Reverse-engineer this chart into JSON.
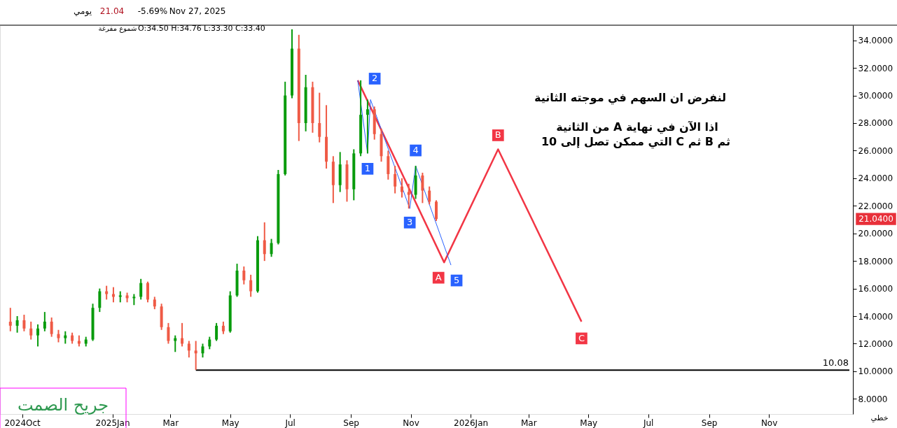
{
  "chart_data": {
    "type": "candlestick",
    "x": [
      "2024-09-19",
      "2024-09-26",
      "2024-10-03",
      "2024-10-10",
      "2024-10-17",
      "2024-10-24",
      "2024-10-31",
      "2024-11-07",
      "2024-11-14",
      "2024-11-21",
      "2024-11-28",
      "2024-12-05",
      "2024-12-12",
      "2024-12-19",
      "2024-12-26",
      "2025-01-02",
      "2025-01-09",
      "2025-01-16",
      "2025-01-23",
      "2025-01-30",
      "2025-02-06",
      "2025-02-13",
      "2025-02-20",
      "2025-02-27",
      "2025-03-06",
      "2025-03-13",
      "2025-03-20",
      "2025-03-27",
      "2025-04-03",
      "2025-04-10",
      "2025-04-17",
      "2025-04-24",
      "2025-05-01",
      "2025-05-08",
      "2025-05-15",
      "2025-05-22",
      "2025-05-29",
      "2025-06-05",
      "2025-06-12",
      "2025-06-19",
      "2025-06-26",
      "2025-07-03",
      "2025-07-10",
      "2025-07-17",
      "2025-07-24",
      "2025-07-31",
      "2025-08-07",
      "2025-08-14",
      "2025-08-21",
      "2025-08-28",
      "2025-09-04",
      "2025-09-11",
      "2025-09-18",
      "2025-09-25",
      "2025-10-02",
      "2025-10-09",
      "2025-10-16",
      "2025-10-23",
      "2025-10-30",
      "2025-11-06",
      "2025-11-13",
      "2025-11-20",
      "2025-11-27"
    ],
    "ohlc": [
      [
        13.6,
        14.6,
        12.9,
        13.3
      ],
      [
        13.3,
        14.0,
        12.8,
        13.7
      ],
      [
        13.7,
        14.1,
        12.9,
        13.1
      ],
      [
        13.1,
        13.6,
        12.3,
        12.6
      ],
      [
        12.6,
        13.4,
        11.8,
        13.1
      ],
      [
        13.1,
        14.3,
        12.9,
        13.6
      ],
      [
        13.6,
        13.9,
        12.5,
        12.7
      ],
      [
        12.7,
        13.0,
        12.1,
        12.4
      ],
      [
        12.4,
        12.9,
        12.0,
        12.6
      ],
      [
        12.6,
        12.8,
        12.0,
        12.2
      ],
      [
        12.2,
        12.6,
        11.8,
        12.0
      ],
      [
        12.0,
        12.5,
        11.8,
        12.3
      ],
      [
        12.3,
        14.9,
        12.2,
        14.6
      ],
      [
        14.6,
        16.0,
        14.3,
        15.8
      ],
      [
        15.8,
        16.2,
        15.2,
        15.6
      ],
      [
        15.6,
        16.1,
        15.0,
        15.4
      ],
      [
        15.4,
        15.8,
        15.0,
        15.5
      ],
      [
        15.5,
        15.7,
        15.0,
        15.3
      ],
      [
        15.3,
        15.6,
        14.8,
        15.4
      ],
      [
        15.4,
        16.7,
        15.2,
        16.4
      ],
      [
        16.4,
        16.5,
        15.0,
        15.2
      ],
      [
        15.2,
        15.4,
        14.5,
        14.7
      ],
      [
        14.7,
        14.9,
        13.0,
        13.2
      ],
      [
        13.2,
        13.5,
        12.0,
        12.2
      ],
      [
        12.2,
        12.6,
        11.4,
        12.4
      ],
      [
        12.4,
        13.5,
        11.8,
        12.0
      ],
      [
        12.0,
        12.2,
        11.0,
        11.5
      ],
      [
        11.5,
        12.2,
        10.1,
        11.3
      ],
      [
        11.3,
        12.0,
        11.0,
        11.8
      ],
      [
        11.8,
        12.5,
        11.6,
        12.3
      ],
      [
        12.3,
        13.5,
        12.2,
        13.3
      ],
      [
        13.3,
        13.6,
        12.7,
        12.9
      ],
      [
        12.9,
        15.8,
        12.8,
        15.5
      ],
      [
        15.5,
        17.8,
        15.4,
        17.3
      ],
      [
        17.3,
        17.6,
        16.3,
        16.6
      ],
      [
        16.6,
        17.0,
        15.4,
        15.8
      ],
      [
        15.8,
        19.8,
        15.7,
        19.5
      ],
      [
        19.5,
        20.8,
        18.0,
        18.5
      ],
      [
        18.5,
        19.6,
        18.3,
        19.3
      ],
      [
        19.3,
        24.6,
        19.2,
        24.3
      ],
      [
        24.3,
        31.0,
        24.2,
        30.0
      ],
      [
        30.0,
        34.8,
        29.8,
        33.4
      ],
      [
        33.4,
        34.4,
        26.7,
        28.0
      ],
      [
        28.0,
        31.5,
        27.4,
        30.6
      ],
      [
        30.6,
        31.0,
        27.3,
        28.0
      ],
      [
        28.0,
        30.2,
        26.6,
        27.0
      ],
      [
        27.0,
        29.3,
        24.7,
        25.2
      ],
      [
        25.2,
        25.6,
        22.2,
        23.5
      ],
      [
        23.5,
        25.9,
        23.0,
        25.0
      ],
      [
        25.0,
        25.3,
        22.3,
        23.2
      ],
      [
        23.2,
        26.1,
        22.4,
        25.8
      ],
      [
        25.8,
        31.1,
        25.6,
        28.6
      ],
      [
        28.6,
        29.7,
        25.8,
        29.0
      ],
      [
        29.0,
        29.2,
        26.8,
        27.2
      ],
      [
        27.2,
        27.6,
        25.2,
        25.6
      ],
      [
        25.6,
        26.0,
        23.9,
        24.3
      ],
      [
        24.3,
        24.9,
        22.9,
        23.4
      ],
      [
        23.4,
        24.0,
        22.6,
        23.0
      ],
      [
        23.0,
        23.6,
        21.8,
        22.8
      ],
      [
        22.8,
        24.9,
        22.5,
        24.2
      ],
      [
        24.2,
        24.4,
        22.2,
        23.1
      ],
      [
        23.1,
        23.4,
        22.1,
        22.3
      ],
      [
        22.3,
        22.4,
        20.9,
        21.04
      ]
    ],
    "colors": [
      "#ef5a45",
      "#089b0c",
      "#ef5a45",
      "#ef5a45",
      "#089b0c",
      "#089b0c",
      "#ef5a45",
      "#ef5a45",
      "#089b0c",
      "#ef5a45",
      "#ef5a45",
      "#089b0c",
      "#089b0c",
      "#089b0c",
      "#ef5a45",
      "#ef5a45",
      "#089b0c",
      "#ef5a45",
      "#089b0c",
      "#089b0c",
      "#ef5a45",
      "#ef5a45",
      "#ef5a45",
      "#ef5a45",
      "#089b0c",
      "#ef5a45",
      "#ef5a45",
      "#ef5a45",
      "#089b0c",
      "#089b0c",
      "#089b0c",
      "#ef5a45",
      "#089b0c",
      "#089b0c",
      "#ef5a45",
      "#ef5a45",
      "#089b0c",
      "#ef5a45",
      "#089b0c",
      "#089b0c",
      "#089b0c",
      "#089b0c",
      "#ef5a45",
      "#089b0c",
      "#ef5a45",
      "#ef5a45",
      "#ef5a45",
      "#ef5a45",
      "#089b0c",
      "#ef5a45",
      "#089b0c",
      "#089b0c",
      "#089b0c",
      "#ef5a45",
      "#ef5a45",
      "#ef5a45",
      "#ef5a45",
      "#ef5a45",
      "#ef5a45",
      "#089b0c",
      "#ef5a45",
      "#ef5a45",
      "#ef5a45"
    ],
    "series": [
      {
        "type": "line",
        "color": "#2962ff",
        "x": [
          "2025-09-08",
          "2025-09-18",
          "2025-09-21",
          "2025-10-31",
          "2025-11-06",
          "2025-12-12"
        ],
        "values": [
          31.1,
          25.8,
          29.7,
          21.8,
          24.9,
          17.7
        ]
      },
      {
        "type": "line",
        "color": "#f23645",
        "x": [
          "2025-09-08",
          "2025-12-05",
          "2026-01-29",
          "2026-04-24"
        ],
        "values": [
          31.1,
          17.9,
          26.1,
          13.6
        ]
      },
      {
        "type": "line",
        "color": "#000000",
        "x": [
          "2025-03-27",
          "2027-01-22"
        ],
        "values": [
          10.08,
          10.08
        ]
      }
    ],
    "annotations": [
      "يومي",
      "21.04",
      "-5.69%",
      "Nov 27, 2025",
      "شموع مفرغة",
      "O:34.50 H:34.76 L:33.30 C:33.40",
      "لنفرض ان السهم في موجته الثانية",
      "اذا الآن في نهاية A  من الثانية",
      "ثم B  ثم  C  التي ممكن تصل إلى 10",
      "جريح الصمت",
      "خطي",
      "21.0400",
      {
        "text": "10.08",
        "x": "2027-01-08",
        "y": 10.08
      },
      {
        "text": "1",
        "x": "2025-09-18",
        "y": 25.8
      },
      {
        "text": "2",
        "x": "2025-09-21",
        "y": 29.7
      },
      {
        "text": "3",
        "x": "2025-10-31",
        "y": 21.8
      },
      {
        "text": "4",
        "x": "2025-11-06",
        "y": 24.9
      },
      {
        "text": "5",
        "x": "2025-12-12",
        "y": 17.7
      },
      {
        "text": "A",
        "x": "2025-12-05",
        "y": 17.9
      },
      {
        "text": "B",
        "x": "2026-01-29",
        "y": 26.1
      },
      {
        "text": "C",
        "x": "2026-04-24",
        "y": 13.6
      }
    ],
    "xlim": [
      "2024-09-12",
      "2027-01-22"
    ],
    "xticks": [
      {
        "value": "2024-10-01",
        "label": "2024Oct"
      },
      {
        "value": "2025-01-01",
        "label": "2025Jan"
      },
      {
        "value": "2025-03-01",
        "label": "Mar"
      },
      {
        "value": "2025-05-01",
        "label": "May"
      },
      {
        "value": "2025-07-01",
        "label": "Jul"
      },
      {
        "value": "2025-09-01",
        "label": "Sep"
      },
      {
        "value": "2025-11-01",
        "label": "Nov"
      },
      {
        "value": "2026-01-01",
        "label": "2026Jan"
      },
      {
        "value": "2026-03-01",
        "label": "Mar"
      },
      {
        "value": "2026-05-01",
        "label": "May"
      },
      {
        "value": "2026-07-01",
        "label": "Jul"
      },
      {
        "value": "2026-09-01",
        "label": "Sep"
      },
      {
        "value": "2026-11-01",
        "label": "Nov"
      }
    ],
    "ylim": [
      6.9,
      35.1
    ],
    "yticks": [
      {
        "value": 8,
        "label": "8.0000"
      },
      {
        "value": 10,
        "label": "10.0000"
      },
      {
        "value": 12,
        "label": "12.0000"
      },
      {
        "value": 14,
        "label": "14.0000"
      },
      {
        "value": 16,
        "label": "16.0000"
      },
      {
        "value": 18,
        "label": "18.0000"
      },
      {
        "value": 20,
        "label": "20.0000"
      },
      {
        "value": 22,
        "label": "22.0000"
      },
      {
        "value": 24,
        "label": "24.0000"
      },
      {
        "value": 26,
        "label": "26.0000"
      },
      {
        "value": 28,
        "label": "28.0000"
      },
      {
        "value": 30,
        "label": "30.0000"
      },
      {
        "value": 32,
        "label": "32.0000"
      },
      {
        "value": 34,
        "label": "34.0000"
      }
    ],
    "grid": false
  }
}
